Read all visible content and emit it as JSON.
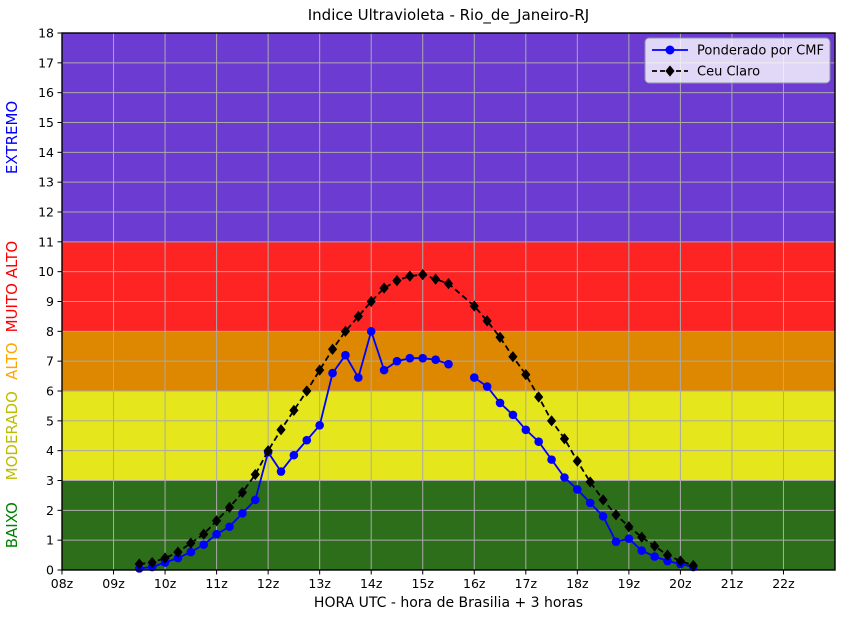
{
  "chart_data": {
    "type": "line",
    "title": "Indice Ultravioleta - Rio_de_Janeiro-RJ",
    "xlabel": "HORA UTC - hora de Brasilia + 3 horas",
    "ylabel": "",
    "xlim": [
      8,
      23
    ],
    "ylim": [
      0,
      18
    ],
    "grid": true,
    "grid_color": "#AAAAAA",
    "x_ticks": [
      {
        "value": 8,
        "label": "08z"
      },
      {
        "value": 9,
        "label": "09z"
      },
      {
        "value": 10,
        "label": "10z"
      },
      {
        "value": 11,
        "label": "11z"
      },
      {
        "value": 12,
        "label": "12z"
      },
      {
        "value": 13,
        "label": "13z"
      },
      {
        "value": 14,
        "label": "14z"
      },
      {
        "value": 15,
        "label": "15z"
      },
      {
        "value": 16,
        "label": "16z"
      },
      {
        "value": 17,
        "label": "17z"
      },
      {
        "value": 18,
        "label": "18z"
      },
      {
        "value": 19,
        "label": "19z"
      },
      {
        "value": 20,
        "label": "20z"
      },
      {
        "value": 21,
        "label": "21z"
      },
      {
        "value": 22,
        "label": "22z"
      }
    ],
    "y_ticks": [
      0,
      1,
      2,
      3,
      4,
      5,
      6,
      7,
      8,
      9,
      10,
      11,
      12,
      13,
      14,
      15,
      16,
      17,
      18
    ],
    "bands": [
      {
        "label": "BAIXO",
        "range": [
          0,
          3
        ],
        "fill": "#2D6E1A",
        "label_color": "#008000"
      },
      {
        "label": "MODERADO",
        "range": [
          3,
          6
        ],
        "fill": "#E6E61C",
        "label_color": "#BDBD00"
      },
      {
        "label": "ALTO",
        "range": [
          6,
          8
        ],
        "fill": "#DD8800",
        "label_color": "#FFA500"
      },
      {
        "label": "MUITO ALTO",
        "range": [
          8,
          11
        ],
        "fill": "#FF2424",
        "label_color": "#FF0000"
      },
      {
        "label": "EXTREMO",
        "range": [
          11,
          18
        ],
        "fill": "#6C3BD1",
        "label_color": "#0000FF"
      }
    ],
    "series": [
      {
        "name": "Ponderado por CMF",
        "color": "#0000FF",
        "line_style": "solid",
        "marker": "circle",
        "segments": [
          [
            [
              9.5,
              0.05
            ],
            [
              9.75,
              0.1
            ],
            [
              10,
              0.25
            ],
            [
              10.25,
              0.4
            ],
            [
              10.5,
              0.6
            ],
            [
              10.75,
              0.85
            ],
            [
              11,
              1.2
            ],
            [
              11.25,
              1.45
            ],
            [
              11.5,
              1.9
            ],
            [
              11.75,
              2.35
            ],
            [
              12,
              3.95
            ],
            [
              12.25,
              3.3
            ],
            [
              12.5,
              3.85
            ],
            [
              12.75,
              4.35
            ],
            [
              13,
              4.85
            ],
            [
              13.25,
              6.6
            ],
            [
              13.5,
              7.2
            ],
            [
              13.75,
              6.45
            ],
            [
              14,
              8.0
            ],
            [
              14.25,
              6.7
            ],
            [
              14.5,
              7.0
            ],
            [
              14.75,
              7.1
            ],
            [
              15,
              7.1
            ],
            [
              15.25,
              7.05
            ],
            [
              15.5,
              6.9
            ]
          ],
          [
            [
              16,
              6.45
            ],
            [
              16.25,
              6.15
            ],
            [
              16.5,
              5.6
            ],
            [
              16.75,
              5.2
            ],
            [
              17,
              4.7
            ],
            [
              17.25,
              4.3
            ],
            [
              17.5,
              3.7
            ],
            [
              17.75,
              3.1
            ],
            [
              18,
              2.7
            ],
            [
              18.25,
              2.25
            ],
            [
              18.5,
              1.8
            ],
            [
              18.75,
              0.95
            ],
            [
              19,
              1.05
            ],
            [
              19.25,
              0.65
            ],
            [
              19.5,
              0.45
            ],
            [
              19.75,
              0.3
            ],
            [
              20,
              0.2
            ],
            [
              20.25,
              0.1
            ]
          ]
        ]
      },
      {
        "name": "Ceu Claro",
        "color": "#000000",
        "line_style": "dashed",
        "marker": "diamond",
        "segments": [
          [
            [
              9.5,
              0.2
            ],
            [
              9.75,
              0.25
            ],
            [
              10,
              0.4
            ],
            [
              10.25,
              0.6
            ],
            [
              10.5,
              0.9
            ],
            [
              10.75,
              1.2
            ],
            [
              11,
              1.65
            ],
            [
              11.25,
              2.1
            ],
            [
              11.5,
              2.6
            ],
            [
              11.75,
              3.2
            ],
            [
              12,
              4.0
            ],
            [
              12.25,
              4.7
            ],
            [
              12.5,
              5.35
            ],
            [
              12.75,
              6.0
            ],
            [
              13,
              6.7
            ],
            [
              13.25,
              7.4
            ],
            [
              13.5,
              8.0
            ],
            [
              13.75,
              8.5
            ],
            [
              14,
              9.0
            ],
            [
              14.25,
              9.45
            ],
            [
              14.5,
              9.7
            ],
            [
              14.75,
              9.85
            ],
            [
              15,
              9.9
            ],
            [
              15.25,
              9.75
            ],
            [
              15.5,
              9.6
            ],
            [
              16,
              8.85
            ],
            [
              16.25,
              8.35
            ],
            [
              16.5,
              7.8
            ],
            [
              16.75,
              7.15
            ],
            [
              17,
              6.55
            ],
            [
              17.25,
              5.8
            ],
            [
              17.5,
              5.0
            ],
            [
              17.75,
              4.4
            ],
            [
              18,
              3.65
            ],
            [
              18.25,
              2.95
            ],
            [
              18.5,
              2.35
            ],
            [
              18.75,
              1.85
            ],
            [
              19,
              1.45
            ],
            [
              19.25,
              1.1
            ],
            [
              19.5,
              0.8
            ],
            [
              19.75,
              0.5
            ],
            [
              20,
              0.3
            ],
            [
              20.25,
              0.15
            ]
          ]
        ]
      }
    ],
    "legend": {
      "position": "upper-right",
      "background": "rgba(255,255,255,0.8)",
      "border_color": "#9090A8",
      "items": [
        "Ponderado por CMF",
        "Ceu Claro"
      ]
    }
  }
}
